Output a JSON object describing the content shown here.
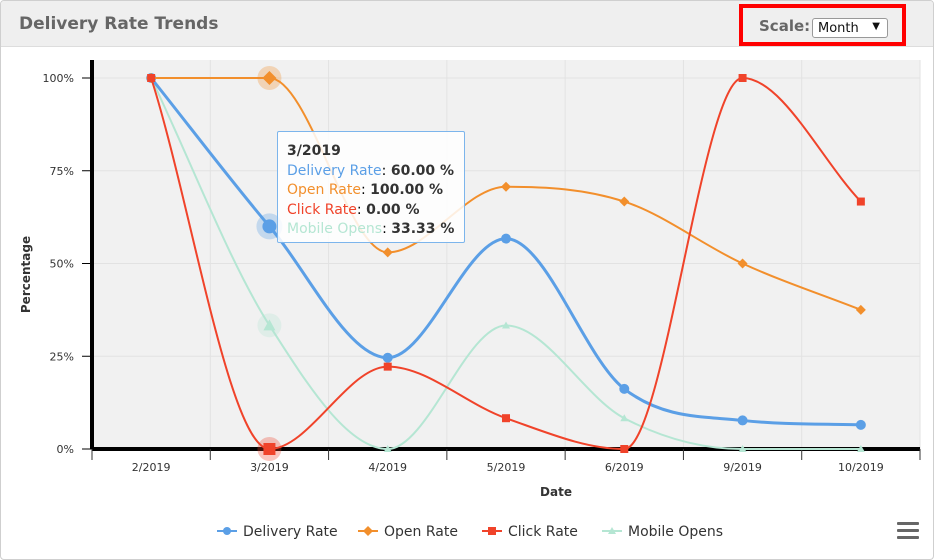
{
  "panel": {
    "title": "Delivery Rate Trends"
  },
  "scale": {
    "label": "Scale:",
    "selected": "Month"
  },
  "chart_data": {
    "type": "line",
    "categories": [
      "2/2019",
      "3/2019",
      "4/2019",
      "5/2019",
      "6/2019",
      "9/2019",
      "10/2019"
    ],
    "ylabel": "Percentage",
    "xlabel": "Date",
    "ylim": [
      0,
      100
    ],
    "yticks": [
      0,
      25,
      50,
      75,
      100
    ],
    "ytick_labels": [
      "0%",
      "25%",
      "50%",
      "75%",
      "100%"
    ],
    "grid": true,
    "legend_position": "bottom-center",
    "series": [
      {
        "name": "Delivery Rate",
        "color": "#5b9fe6",
        "marker": "circle",
        "values": [
          100,
          60,
          24.6,
          56.7,
          16.2,
          7.7,
          6.5
        ]
      },
      {
        "name": "Open Rate",
        "color": "#f28f2c",
        "marker": "diamond",
        "values": [
          100,
          100,
          53,
          70.7,
          66.7,
          50,
          37.5
        ]
      },
      {
        "name": "Click Rate",
        "color": "#f0432a",
        "marker": "square",
        "values": [
          100,
          0,
          22.2,
          8.3,
          0,
          100,
          66.7
        ]
      },
      {
        "name": "Mobile Opens",
        "color": "#b5e6d3",
        "marker": "triangle",
        "values": [
          100,
          33.33,
          0,
          33.3,
          8.3,
          0,
          0
        ]
      }
    ],
    "tooltip": {
      "title": "3/2019",
      "rows": [
        {
          "label": "Delivery Rate",
          "value": "60.00 %"
        },
        {
          "label": "Open Rate",
          "value": "100.00 %"
        },
        {
          "label": "Click Rate",
          "value": "0.00 %"
        },
        {
          "label": "Mobile Opens",
          "value": "33.33 %"
        }
      ]
    }
  }
}
